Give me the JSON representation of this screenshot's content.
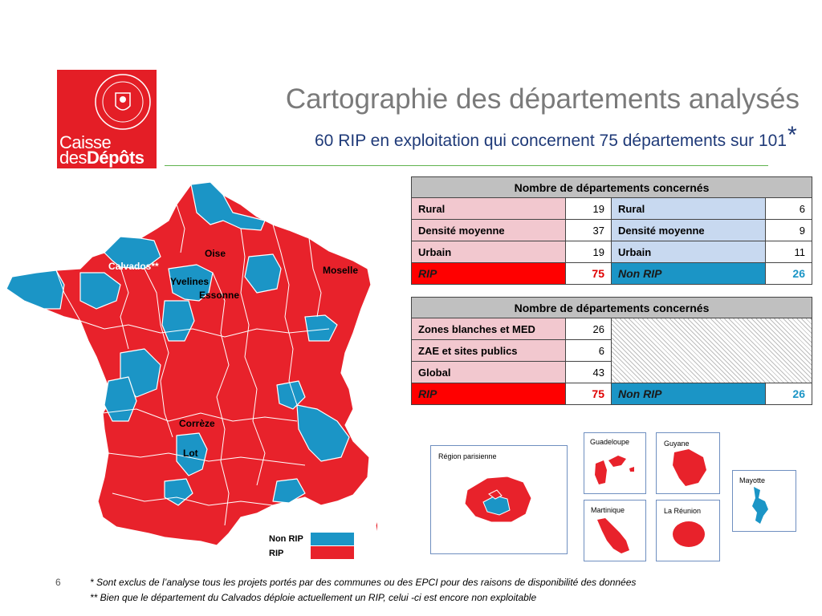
{
  "logo": {
    "line1": "Caisse",
    "line2_a": "des",
    "line2_b": "Dépôts",
    "seal_text": "CAISSE DES DÉPÔTS ET CONSIGNATIONS"
  },
  "title": "Cartographie des départements analysés",
  "subtitle": "60 RIP en exploitation qui concernent 75 départements sur 101",
  "subtitle_star": "*",
  "table1": {
    "header": "Nombre de départements concernés",
    "rows": [
      {
        "label_a": "Rural",
        "value_a": "19",
        "label_b": "Rural",
        "value_b": "6"
      },
      {
        "label_a": "Densité moyenne",
        "value_a": "37",
        "label_b": "Densité moyenne",
        "value_b": "9"
      },
      {
        "label_a": "Urbain",
        "value_a": "19",
        "label_b": "Urbain",
        "value_b": "11"
      }
    ],
    "total": {
      "label_a": "RIP",
      "value_a": "75",
      "label_b": "Non RIP",
      "value_b": "26"
    }
  },
  "table2": {
    "header": "Nombre de départements concernés",
    "rows": [
      {
        "label": "Zones blanches et MED",
        "value": "26"
      },
      {
        "label": "ZAE et sites publics",
        "value": "6"
      },
      {
        "label": "Global",
        "value": "43"
      }
    ],
    "total": {
      "label_a": "RIP",
      "value_a": "75",
      "label_b": "Non RIP",
      "value_b": "26"
    }
  },
  "map": {
    "labels": {
      "oise": "Oise",
      "calvados": "Calvados**",
      "yvelines": "Yvelines",
      "essonne": "Essonne",
      "moselle": "Moselle",
      "correze": "Corrèze",
      "lot": "Lot"
    },
    "colors": {
      "rip": "#e8222b",
      "non_rip": "#1b95c6",
      "border": "#ffffff"
    }
  },
  "insets": {
    "region_parisienne": "Région  parisienne",
    "guadeloupe": "Guadeloupe",
    "guyane": "Guyane",
    "mayotte": "Mayotte",
    "martinique": "Martinique",
    "la_reunion": "La Réunion"
  },
  "legend": {
    "non_rip": "Non RIP",
    "rip": "RIP"
  },
  "footer": {
    "page": "6",
    "note1": "* Sont exclus de l’analyse tous les projets portés par des communes ou des EPCI pour des raisons de disponibilité des données",
    "note2": "** Bien que le  département du Calvados déploie actuellement un RIP, celui -ci est  encore non exploitable"
  }
}
